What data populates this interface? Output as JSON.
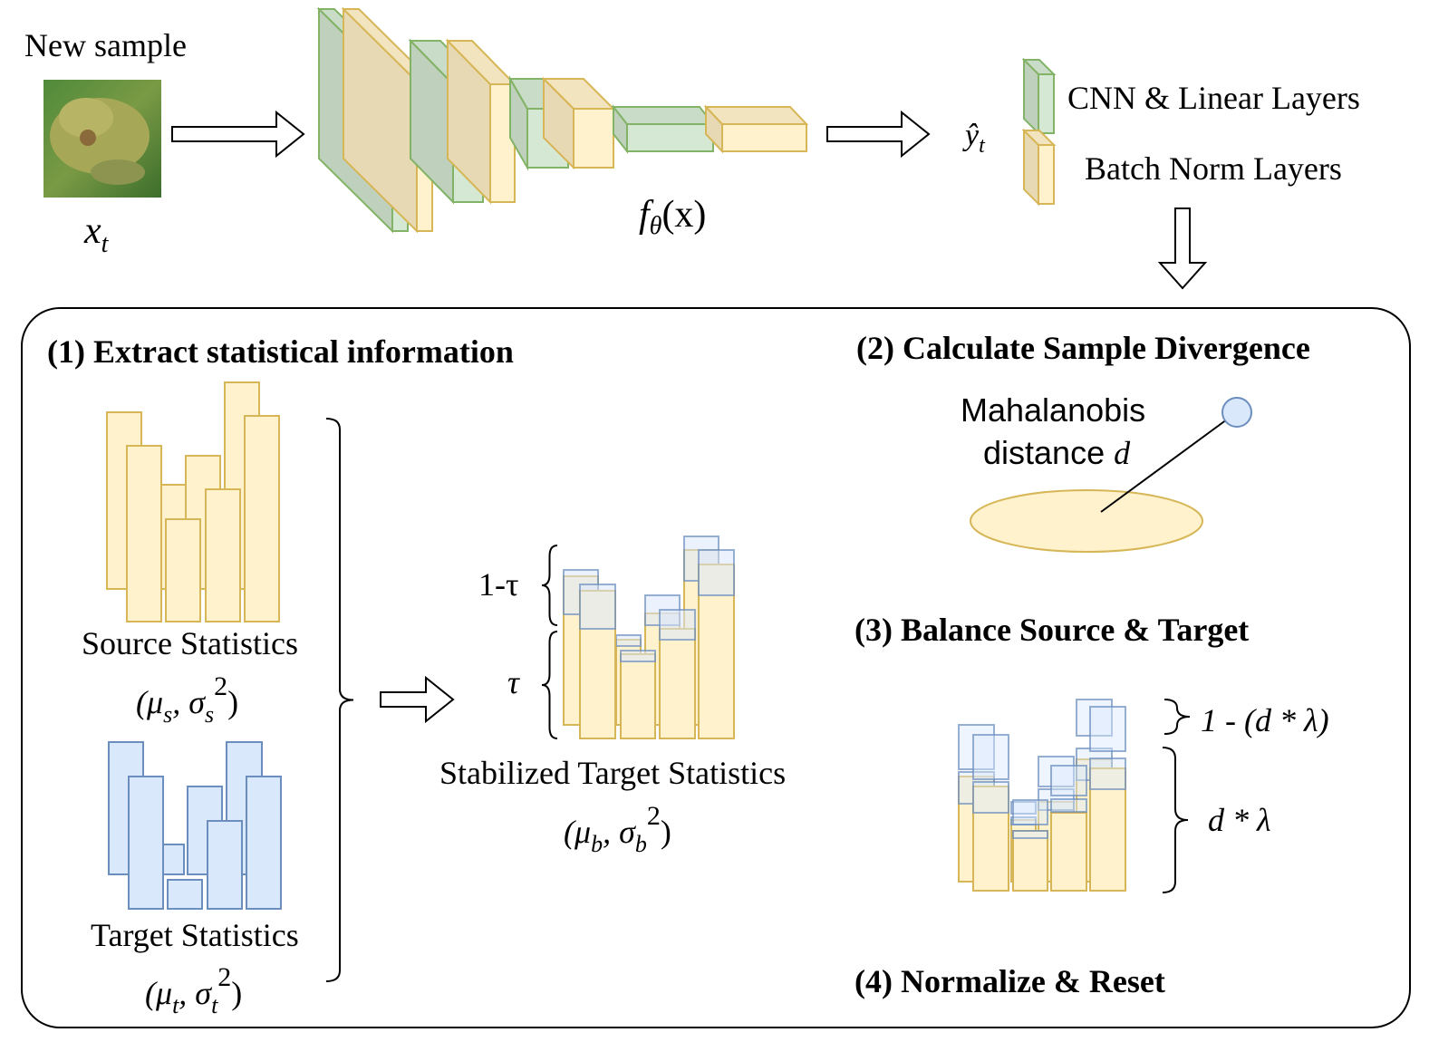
{
  "colors": {
    "cnn_fill_front": "#d5e8d4",
    "cnn_fill_side": "#bfd0bd",
    "cnn_fill_top": "#c8dcc7",
    "cnn_stroke": "#82b366",
    "bn_fill_front": "#fff2cc",
    "bn_fill_side": "#e8d9b5",
    "bn_fill_top": "#f2e4bf",
    "bn_stroke": "#d6b656",
    "target_fill": "#dae8fc",
    "target_stroke": "#6c8ebf",
    "panel_stroke": "#000000"
  },
  "input": {
    "label": "New sample",
    "var": "x",
    "var_sub": "t",
    "image_icon": "frog-image"
  },
  "network": {
    "label_f": "f",
    "label_sub": "θ",
    "label_arg": "(x)"
  },
  "output": {
    "label": "ŷ",
    "label_sub": "t"
  },
  "legend": {
    "cnn": "CNN & Linear Layers",
    "bn": "Batch Norm Layers"
  },
  "step1": {
    "title": "(1) Extract statistical information",
    "source_label": "Source Statistics",
    "source_formula": {
      "open": "(μ",
      "sub1": "s",
      "mid": ", σ",
      "sub2": "s",
      "sup": "2",
      "close": ")"
    },
    "target_label": "Target Statistics",
    "target_formula": {
      "open": "(μ",
      "sub1": "t",
      "mid": ", σ",
      "sub2": "t",
      "sup": "2",
      "close": ")"
    },
    "stabilized_label": "Stabilized Target Statistics",
    "stabilized_formula": {
      "open": "(μ",
      "sub1": "b",
      "mid": ", σ",
      "sub2": "b",
      "sup": "2",
      "close": ")"
    },
    "one_minus_tau": "1-τ",
    "tau": "τ"
  },
  "step2": {
    "title": "(2) Calculate Sample Divergence",
    "line1": "Mahalanobis",
    "line2": "distance ",
    "line2_var": "d"
  },
  "step3": {
    "title": "(3) Balance Source & Target",
    "upper": "1 - (d * λ)",
    "lower": "d * λ"
  },
  "step4": {
    "title": "(4) Normalize & Reset"
  }
}
